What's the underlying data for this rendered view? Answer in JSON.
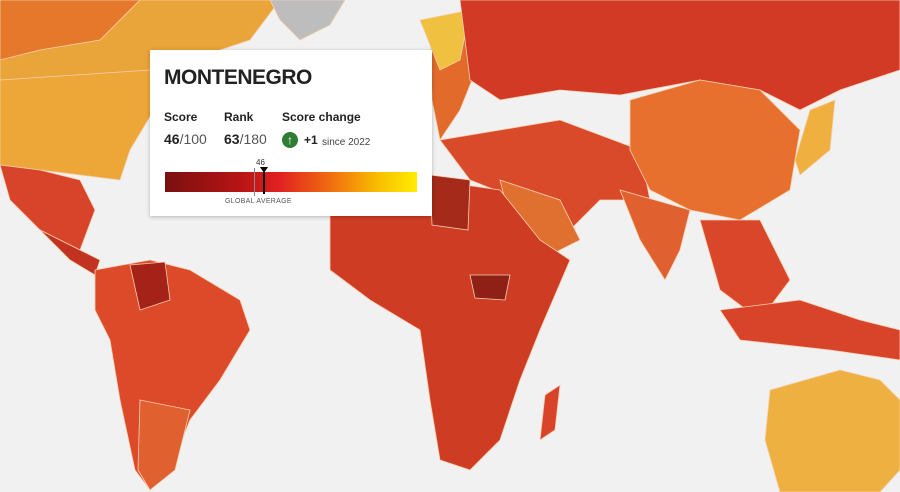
{
  "tooltip": {
    "country": "MONTENEGRO",
    "score_label": "Score",
    "score": 46,
    "score_max": "/100",
    "rank_label": "Rank",
    "rank": 63,
    "rank_total": "/180",
    "change_label": "Score change",
    "change": "+1",
    "since": "since 2022",
    "marker_label": "46",
    "average_label": "GLOBAL AVERAGE"
  }
}
